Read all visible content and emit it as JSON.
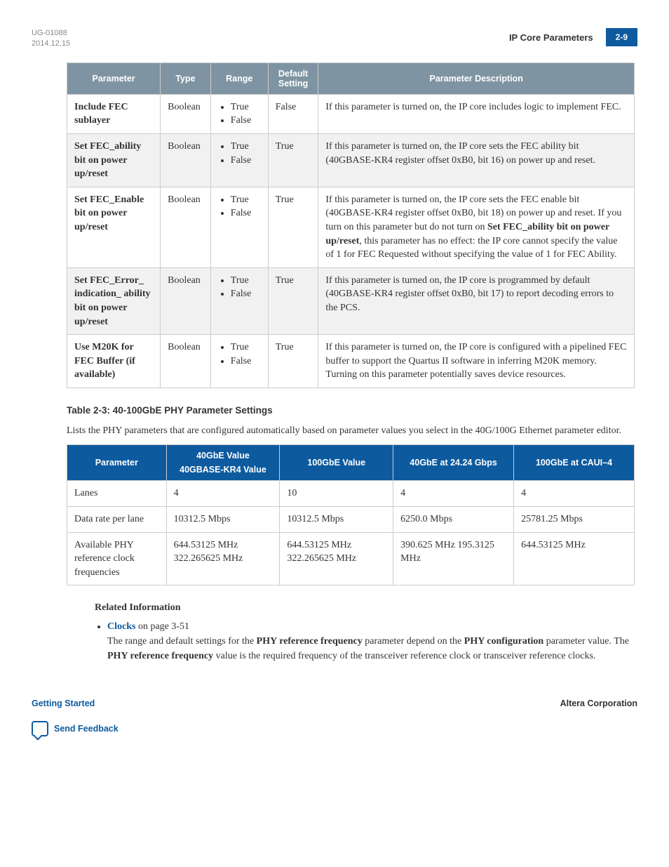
{
  "header": {
    "doc_id": "UG-01088",
    "date": "2014.12.15",
    "section_title": "IP Core Parameters",
    "page_num": "2-9"
  },
  "table1": {
    "headers": {
      "param": "Parameter",
      "type": "Type",
      "range": "Range",
      "default": "Default Setting",
      "desc": "Parameter Description"
    },
    "rows": [
      {
        "param": "Include FEC sublayer",
        "type": "Boolean",
        "range": [
          "True",
          "False"
        ],
        "default": "False",
        "desc_html": "If this parameter is turned on, the IP core includes logic to implement FEC."
      },
      {
        "param": "Set FEC_ability bit on power up/reset",
        "type": "Boolean",
        "range": [
          "True",
          "False"
        ],
        "default": "True",
        "desc_html": "If this parameter is turned on, the IP core sets the FEC ability bit (40GBASE-KR4 register offset 0xB0, bit 16) on power up and reset."
      },
      {
        "param": "Set FEC_Enable bit on power up/reset",
        "type": "Boolean",
        "range": [
          "True",
          "False"
        ],
        "default": "True",
        "desc_html": "If this parameter is turned on, the IP core sets the FEC enable bit (40GBASE-KR4 register offset 0xB0, bit 18) on power up and reset. If you turn on this parameter but do not turn on <span class=\"desc-bold\">Set FEC_ability bit on power up/reset</span>, this parameter has no effect: the IP core cannot specify the value of 1 for FEC Requested without specifying the value of 1 for FEC Ability."
      },
      {
        "param": "Set FEC_Error_ indication_ ability bit on power up/reset",
        "type": "Boolean",
        "range": [
          "True",
          "False"
        ],
        "default": "True",
        "desc_html": "If this parameter is turned on, the IP core is programmed by default (40GBASE-KR4 register offset 0xB0, bit 17) to report decoding errors to the PCS."
      },
      {
        "param": "Use M20K for FEC Buffer (if available)",
        "type": "Boolean",
        "range": [
          "True",
          "False"
        ],
        "default": "True",
        "desc_html": "If this parameter is turned on, the IP core is configured with a pipelined FEC buffer to support the Quartus II software in inferring M20K memory. Turning on this parameter potentially saves device resources."
      }
    ]
  },
  "table2": {
    "caption": "Table 2-3: 40-100GbE PHY Parameter Settings",
    "intro": "Lists the PHY parameters that are configured automatically based on parameter values you select in the 40G/100G Ethernet parameter editor.",
    "headers": {
      "param": "Parameter",
      "col1a": "40GbE Value",
      "col1b": "40GBASE-KR4 Value",
      "col2": "100GbE Value",
      "col3": "40GbE at 24.24 Gbps",
      "col4": "100GbE at CAUI–4"
    },
    "rows": [
      {
        "param": "Lanes",
        "c1": "4",
        "c2": "10",
        "c3": "4",
        "c4": "4"
      },
      {
        "param": "Data rate per lane",
        "c1": "10312.5 Mbps",
        "c2": "10312.5 Mbps",
        "c3": "6250.0 Mbps",
        "c4": "25781.25 Mbps"
      },
      {
        "param": "Available PHY reference clock frequencies",
        "c1": "644.53125 MHz 322.265625 MHz",
        "c2": "644.53125 MHz 322.265625 MHz",
        "c3": "390.625 MHz 195.3125 MHz",
        "c4": "644.53125 MHz"
      }
    ]
  },
  "related": {
    "heading": "Related Information",
    "link_text": "Clocks",
    "link_suffix": " on page 3-51",
    "body_html": "The range and default settings for the <span class=\"desc-bold\">PHY reference frequency</span> parameter depend on the <span class=\"desc-bold\">PHY configuration</span> parameter value. The <span class=\"desc-bold\">PHY reference frequency</span> value is the required frequency of the transceiver reference clock or transceiver reference clocks."
  },
  "footer": {
    "left": "Getting Started",
    "right": "Altera Corporation",
    "feedback": "Send Feedback"
  },
  "table1_colwidths": [
    "130",
    "70",
    "80",
    "70",
    "440"
  ],
  "table2_colwidths": [
    "140",
    "160",
    "160",
    "170",
    "170"
  ]
}
